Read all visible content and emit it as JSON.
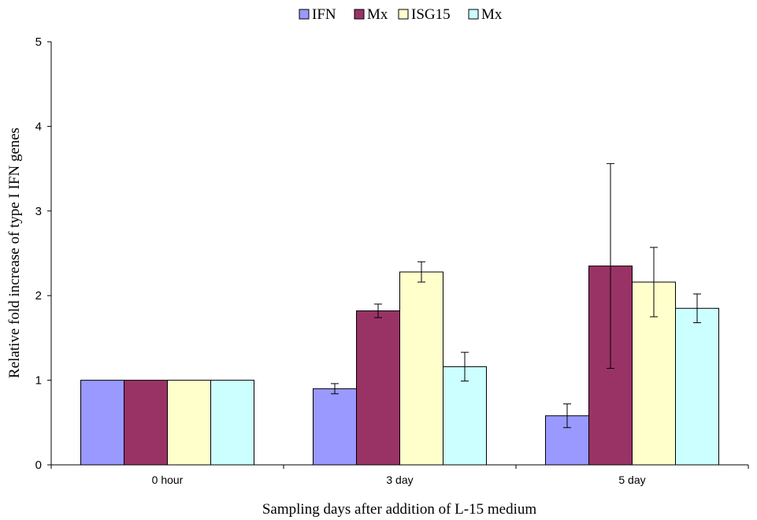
{
  "chart_data": {
    "type": "bar",
    "categories": [
      "0 hour",
      "3 day",
      "5 day"
    ],
    "series": [
      {
        "name": "IFN",
        "color": "#9999ff",
        "values": [
          1.0,
          0.9,
          0.58
        ],
        "errors": [
          0.0,
          0.06,
          0.14
        ]
      },
      {
        "name": "Mx",
        "color": "#993366",
        "values": [
          1.0,
          1.82,
          2.35
        ],
        "errors": [
          0.0,
          0.08,
          1.21
        ]
      },
      {
        "name": "ISG15",
        "color": "#ffffcc",
        "values": [
          1.0,
          2.28,
          2.16
        ],
        "errors": [
          0.0,
          0.12,
          0.41
        ]
      },
      {
        "name": "Mx",
        "color": "#ccffff",
        "values": [
          1.0,
          1.16,
          1.85
        ],
        "errors": [
          0.0,
          0.17,
          0.17
        ]
      }
    ],
    "xlabel": "Sampling days after addition of L-15 medium",
    "ylabel": "Relative fold increase of type I IFN genes",
    "ylim": [
      0,
      5
    ],
    "yticks": [
      "0",
      "1",
      "2",
      "3",
      "4",
      "5"
    ],
    "grid": false,
    "legend": "top-center",
    "error_bars": true
  }
}
